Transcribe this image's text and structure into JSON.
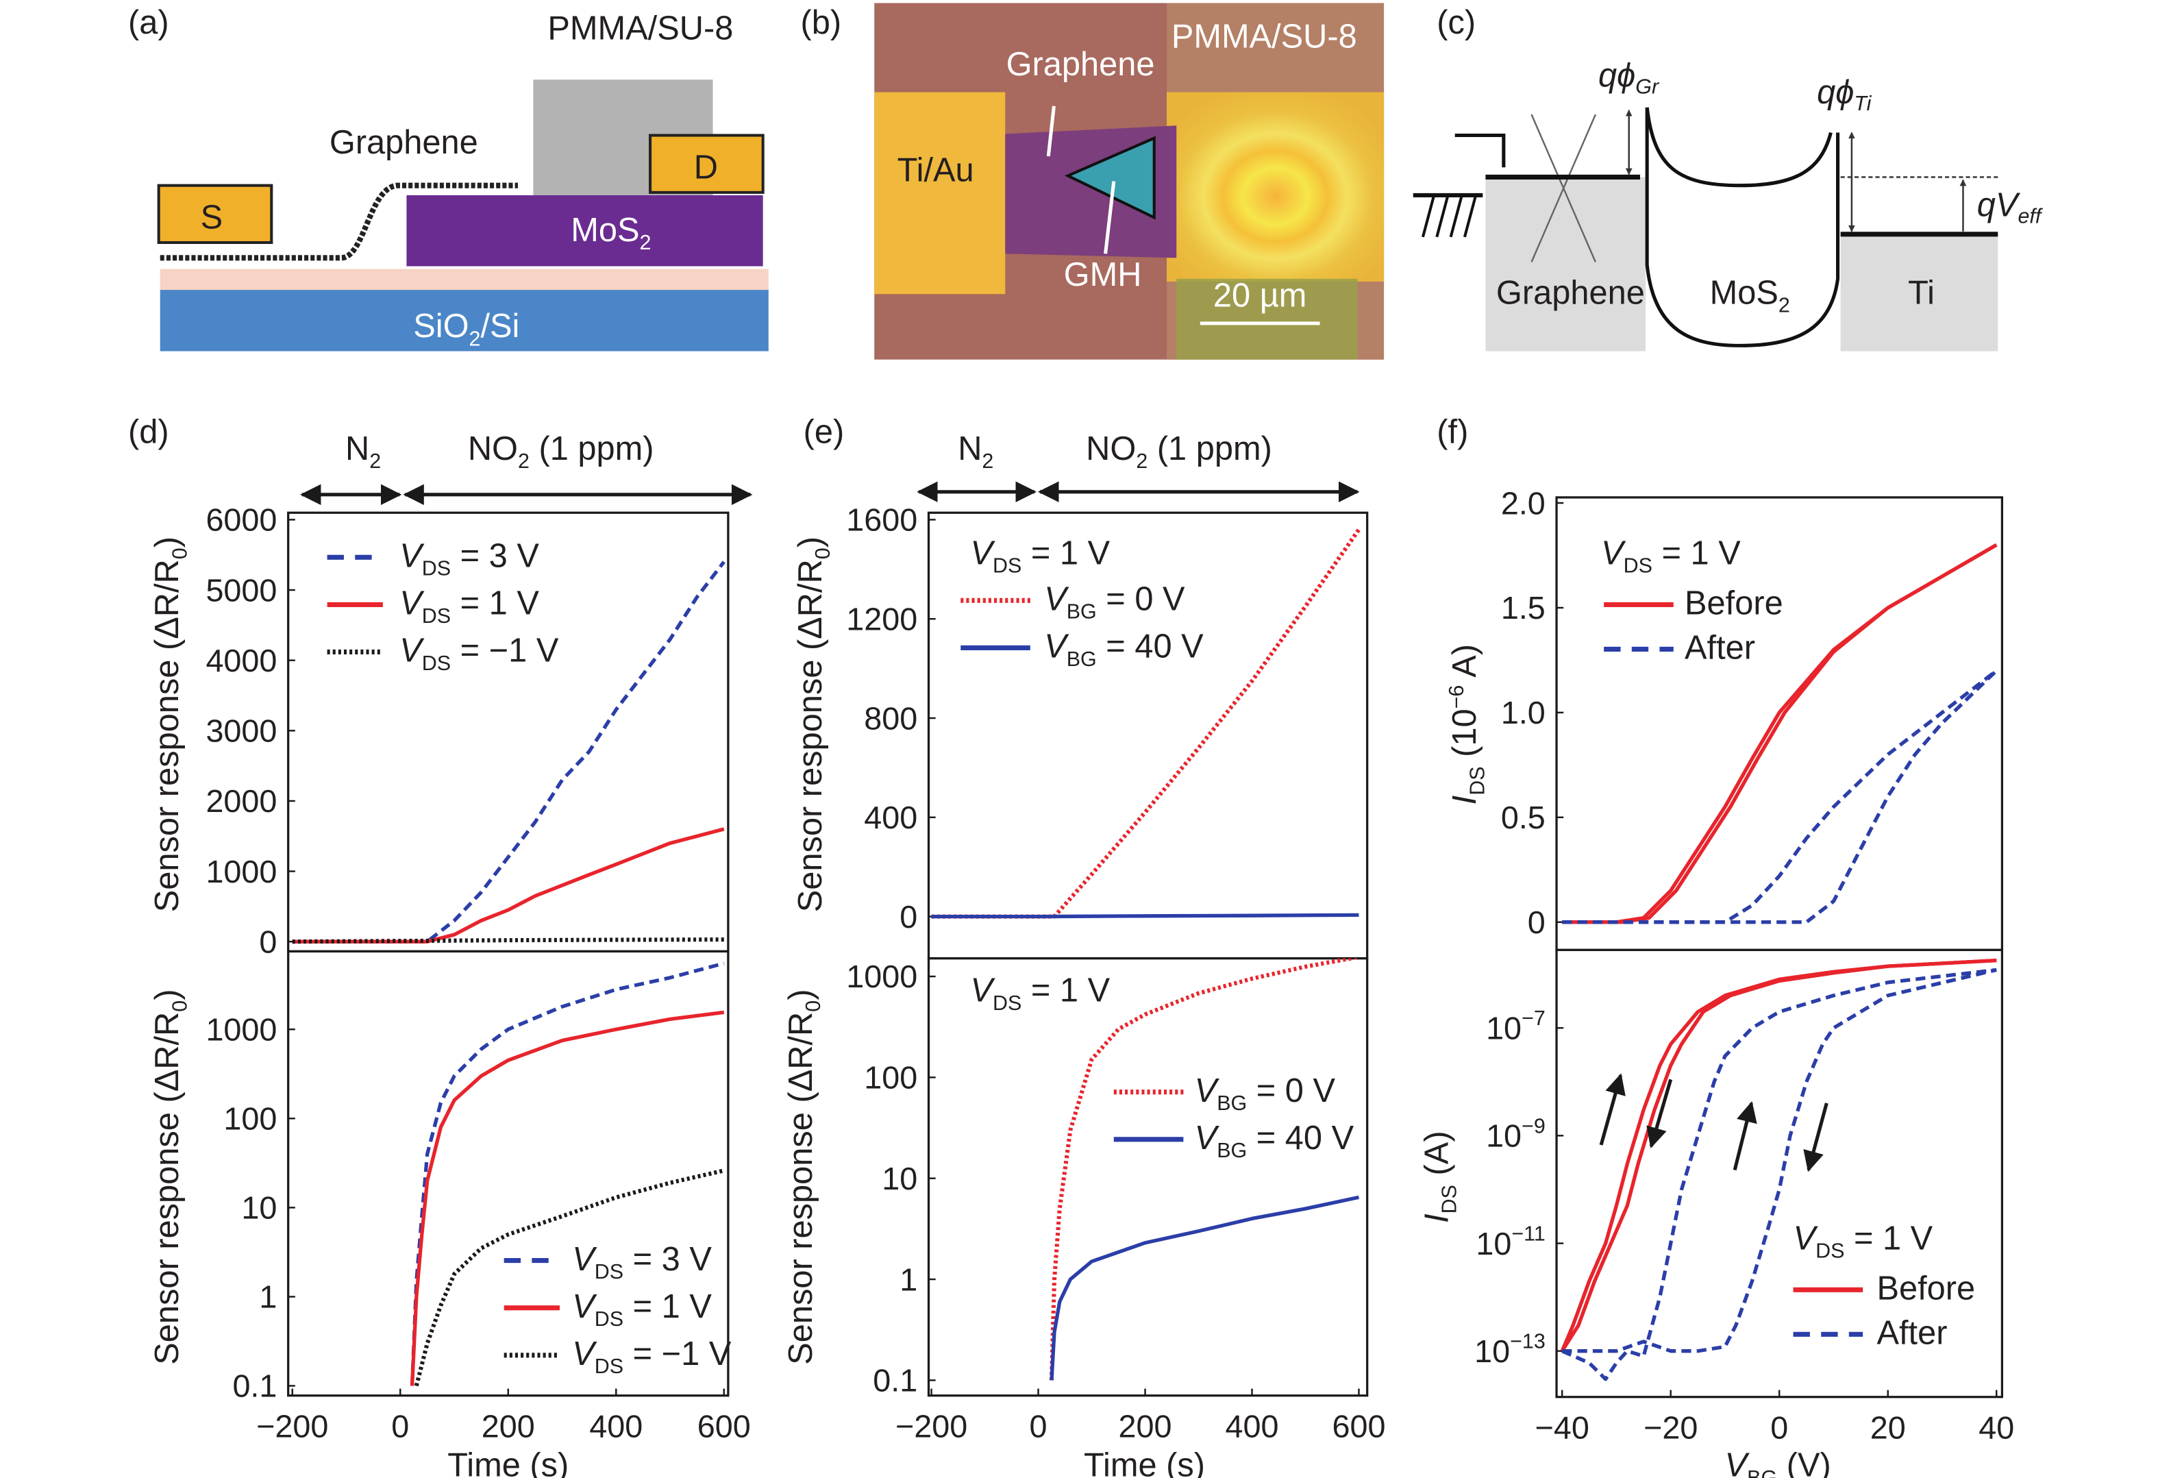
{
  "colors": {
    "red": "#e8242c",
    "blue": "#2b3ea8",
    "black": "#1a1a1a",
    "mos2": "#6a2c91",
    "contact": "#f0b02a",
    "substrate": "#4a86c8",
    "pmma": "#b3b3b3"
  },
  "panel_a": {
    "label": "(a)",
    "pmma": "PMMA/SU-8",
    "graphene": "Graphene",
    "source": "S",
    "drain": "D",
    "mos2": {
      "text": "MoS",
      "sub": "2"
    },
    "substrate": {
      "text": "SiO",
      "sub": "2",
      "rest": "/Si"
    }
  },
  "panel_b": {
    "label": "(b)",
    "pmma": "PMMA/SU-8",
    "graphene": "Graphene",
    "tiau": "Ti/Au",
    "gmh": "GMH",
    "scale": "20 µm"
  },
  "panel_c": {
    "label": "(c)",
    "phi_gr": {
      "q": "qϕ",
      "sub": "Gr"
    },
    "phi_ti": {
      "q": "qϕ",
      "sub": "Ti"
    },
    "veff": {
      "q": "qV",
      "sub": "eff"
    },
    "graphene": "Graphene",
    "mos2": {
      "text": "MoS",
      "sub": "2"
    },
    "ti": "Ti"
  },
  "panel_d": {
    "label": "(d)",
    "n2": {
      "text": "N",
      "sub": "2"
    },
    "no2": {
      "text": "NO",
      "sub": "2",
      "rest": " (1 ppm)"
    }
  },
  "panel_e": {
    "label": "(e)",
    "n2": {
      "text": "N",
      "sub": "2"
    },
    "no2": {
      "text": "NO",
      "sub": "2",
      "rest": " (1 ppm)"
    }
  },
  "panel_f": {
    "label": "(f)"
  },
  "chart_data": [
    {
      "panel": "d-top",
      "type": "line",
      "yscale": "linear",
      "xlim": [
        -200,
        600
      ],
      "ylim": [
        0,
        6000
      ],
      "ylabel": {
        "text": "Sensor response (ΔR/R",
        "sub": "0",
        "rest": ")"
      },
      "y_ticks": [
        {
          "v": 0,
          "t": "0"
        },
        {
          "v": 1000,
          "t": "1000"
        },
        {
          "v": 2000,
          "t": "2000"
        },
        {
          "v": 3000,
          "t": "3000"
        },
        {
          "v": 4000,
          "t": "4000"
        },
        {
          "v": 5000,
          "t": "5000"
        },
        {
          "v": 6000,
          "t": "6000"
        }
      ],
      "legend_position": "top-left",
      "series": [
        {
          "label": {
            "sym": "V",
            "sub": "DS",
            "rest": " = 3 V"
          },
          "color": "#2b3ea8",
          "style": "dashed",
          "x": [
            -200,
            0,
            50,
            100,
            150,
            200,
            250,
            300,
            350,
            400,
            450,
            500,
            550,
            600
          ],
          "y": [
            0,
            0,
            0,
            300,
            700,
            1200,
            1700,
            2300,
            2700,
            3300,
            3800,
            4300,
            4900,
            5400
          ]
        },
        {
          "label": {
            "sym": "V",
            "sub": "DS",
            "rest": " = 1 V"
          },
          "color": "#e8242c",
          "style": "solid",
          "x": [
            -200,
            0,
            50,
            100,
            150,
            200,
            250,
            300,
            350,
            400,
            450,
            500,
            550,
            600
          ],
          "y": [
            0,
            0,
            0,
            100,
            300,
            450,
            650,
            800,
            950,
            1100,
            1250,
            1400,
            1500,
            1600
          ]
        },
        {
          "label": {
            "sym": "V",
            "sub": "DS",
            "rest": " = −1 V"
          },
          "color": "#1a1a1a",
          "style": "dotted",
          "x": [
            -200,
            0,
            200,
            400,
            600
          ],
          "y": [
            0,
            10,
            20,
            25,
            30
          ]
        }
      ]
    },
    {
      "panel": "d-bottom",
      "type": "line",
      "yscale": "log",
      "xlim": [
        -200,
        600
      ],
      "ylim": [
        0.1,
        7500
      ],
      "xlabel": "Time (s)",
      "ylabel": {
        "text": "Sensor response (ΔR/R",
        "sub": "0",
        "rest": ")"
      },
      "x_ticks": [
        {
          "v": -200,
          "t": "−200"
        },
        {
          "v": 0,
          "t": "0"
        },
        {
          "v": 200,
          "t": "200"
        },
        {
          "v": 400,
          "t": "400"
        },
        {
          "v": 600,
          "t": "600"
        }
      ],
      "y_ticks": [
        {
          "v": 0.1,
          "t": "0.1"
        },
        {
          "v": 1,
          "t": "1"
        },
        {
          "v": 10,
          "t": "10"
        },
        {
          "v": 100,
          "t": "100"
        },
        {
          "v": 1000,
          "t": "1000"
        }
      ],
      "legend_position": "bottom-right",
      "series": [
        {
          "label": {
            "sym": "V",
            "sub": "DS",
            "rest": " = 3 V"
          },
          "color": "#2b3ea8",
          "style": "dashed",
          "x": [
            22,
            30,
            40,
            50,
            75,
            100,
            150,
            200,
            300,
            400,
            500,
            600
          ],
          "y": [
            0.1,
            1.5,
            8,
            40,
            150,
            300,
            600,
            1000,
            1800,
            2800,
            3800,
            5500
          ]
        },
        {
          "label": {
            "sym": "V",
            "sub": "DS",
            "rest": " = 1 V"
          },
          "color": "#e8242c",
          "style": "solid",
          "x": [
            22,
            30,
            40,
            50,
            75,
            100,
            150,
            200,
            300,
            400,
            500,
            600
          ],
          "y": [
            0.1,
            1,
            5,
            20,
            80,
            160,
            300,
            450,
            750,
            1000,
            1300,
            1550
          ]
        },
        {
          "label": {
            "sym": "V",
            "sub": "DS",
            "rest": " = −1 V"
          },
          "color": "#1a1a1a",
          "style": "dotted",
          "x": [
            30,
            50,
            75,
            100,
            150,
            200,
            300,
            400,
            500,
            600
          ],
          "y": [
            0.1,
            0.3,
            0.8,
            1.8,
            3.5,
            5,
            8,
            13,
            19,
            26
          ]
        }
      ]
    },
    {
      "panel": "e-top",
      "type": "line",
      "yscale": "linear",
      "xlim": [
        -200,
        600
      ],
      "ylim": [
        0,
        1600
      ],
      "ylabel": {
        "text": "Sensor response (ΔR/R",
        "sub": "0",
        "rest": ")"
      },
      "annotation": {
        "sym": "V",
        "sub": "DS",
        "rest": " = 1 V"
      },
      "y_ticks": [
        {
          "v": 0,
          "t": "0"
        },
        {
          "v": 400,
          "t": "400"
        },
        {
          "v": 800,
          "t": "800"
        },
        {
          "v": 1200,
          "t": "1200"
        },
        {
          "v": 1600,
          "t": "1600"
        }
      ],
      "legend_position": "top-left",
      "series": [
        {
          "label": {
            "sym": "V",
            "sub": "BG",
            "rest": " = 0 V"
          },
          "color": "#e8242c",
          "style": "dotted",
          "x": [
            -200,
            0,
            30,
            100,
            200,
            300,
            400,
            500,
            600
          ],
          "y": [
            0,
            0,
            0,
            170,
            420,
            680,
            950,
            1250,
            1560
          ]
        },
        {
          "label": {
            "sym": "V",
            "sub": "BG",
            "rest": " = 40 V"
          },
          "color": "#2b3ea8",
          "style": "solid",
          "x": [
            -200,
            0,
            200,
            400,
            600
          ],
          "y": [
            0,
            0,
            2,
            4,
            6
          ]
        }
      ]
    },
    {
      "panel": "e-bottom",
      "type": "line",
      "yscale": "log",
      "xlim": [
        -200,
        600
      ],
      "ylim": [
        0.1,
        1500
      ],
      "xlabel": "Time (s)",
      "ylabel": {
        "text": "Sensor response (ΔR/R",
        "sub": "0",
        "rest": ")"
      },
      "annotation": {
        "sym": "V",
        "sub": "DS",
        "rest": " = 1 V"
      },
      "x_ticks": [
        {
          "v": -200,
          "t": "−200"
        },
        {
          "v": 0,
          "t": "0"
        },
        {
          "v": 200,
          "t": "200"
        },
        {
          "v": 400,
          "t": "400"
        },
        {
          "v": 600,
          "t": "600"
        }
      ],
      "y_ticks": [
        {
          "v": 0.1,
          "t": "0.1"
        },
        {
          "v": 1,
          "t": "1"
        },
        {
          "v": 10,
          "t": "10"
        },
        {
          "v": 100,
          "t": "100"
        },
        {
          "v": 1000,
          "t": "1000"
        }
      ],
      "legend_position": "center-right",
      "series": [
        {
          "label": {
            "sym": "V",
            "sub": "BG",
            "rest": " = 0 V"
          },
          "color": "#e8242c",
          "style": "dotted",
          "x": [
            25,
            30,
            40,
            60,
            100,
            150,
            200,
            300,
            400,
            500,
            600
          ],
          "y": [
            0.1,
            1,
            5,
            30,
            150,
            300,
            420,
            680,
            950,
            1250,
            1560
          ]
        },
        {
          "label": {
            "sym": "V",
            "sub": "BG",
            "rest": " = 40 V"
          },
          "color": "#2b3ea8",
          "style": "solid",
          "x": [
            25,
            30,
            40,
            60,
            100,
            200,
            300,
            400,
            500,
            600
          ],
          "y": [
            0.1,
            0.3,
            0.6,
            1,
            1.5,
            2.3,
            3,
            4,
            5,
            6.5
          ]
        }
      ]
    },
    {
      "panel": "f-top",
      "type": "line",
      "yscale": "linear",
      "xlim": [
        -40,
        40
      ],
      "ylim": [
        0,
        2.0
      ],
      "ylabel": {
        "sym": "I",
        "sub": "DS",
        "rest": " (10",
        "sup": "−6",
        "rest2": " A)"
      },
      "annotation": {
        "sym": "V",
        "sub": "DS",
        "rest": " = 1 V"
      },
      "y_ticks": [
        {
          "v": 0,
          "t": "0"
        },
        {
          "v": 0.5,
          "t": "0.5"
        },
        {
          "v": 1.0,
          "t": "1.0"
        },
        {
          "v": 1.5,
          "t": "1.5"
        },
        {
          "v": 2.0,
          "t": "2.0"
        }
      ],
      "legend_position": "top-left",
      "series": [
        {
          "label": {
            "text": "Before"
          },
          "color": "#e8242c",
          "style": "solid",
          "x": [
            -40,
            -30,
            -25,
            -20,
            -15,
            -10,
            -5,
            0,
            10,
            20,
            30,
            40
          ],
          "y": [
            0,
            0,
            0.02,
            0.15,
            0.35,
            0.55,
            0.78,
            1.0,
            1.3,
            1.5,
            1.65,
            1.8
          ]
        },
        {
          "color": "#e8242c",
          "style": "solid",
          "x": [
            -40,
            -29,
            -24,
            -19,
            -14,
            -9,
            -4,
            1,
            10,
            20,
            30,
            40
          ],
          "y": [
            0,
            0,
            0.02,
            0.15,
            0.35,
            0.55,
            0.78,
            1.0,
            1.29,
            1.5,
            1.65,
            1.8
          ]
        },
        {
          "label": {
            "text": "After"
          },
          "color": "#2b3ea8",
          "style": "dashed",
          "x": [
            -40,
            -10,
            -5,
            0,
            5,
            10,
            20,
            30,
            40
          ],
          "y": [
            0,
            0,
            0.08,
            0.22,
            0.4,
            0.55,
            0.8,
            1.0,
            1.2
          ]
        },
        {
          "color": "#2b3ea8",
          "style": "dashed",
          "x": [
            -40,
            5,
            10,
            15,
            20,
            25,
            30,
            40
          ],
          "y": [
            0,
            0,
            0.1,
            0.35,
            0.6,
            0.8,
            0.95,
            1.2
          ]
        }
      ]
    },
    {
      "panel": "f-bottom",
      "type": "line",
      "yscale": "log",
      "xlim": [
        -40,
        40
      ],
      "ylim": [
        1e-14,
        3.5e-06
      ],
      "xlabel": {
        "sym": "V",
        "sub": "BG",
        "rest": " (V)"
      },
      "ylabel": {
        "sym": "I",
        "sub": "DS",
        "rest": " (A)"
      },
      "annotation": {
        "sym": "V",
        "sub": "DS",
        "rest": " = 1 V"
      },
      "x_ticks": [
        {
          "v": -40,
          "t": "−40"
        },
        {
          "v": -20,
          "t": "−20"
        },
        {
          "v": 0,
          "t": "0"
        },
        {
          "v": 20,
          "t": "20"
        },
        {
          "v": 40,
          "t": "40"
        }
      ],
      "y_ticks": [
        {
          "v": 1e-13,
          "base": "10",
          "exp": "−13"
        },
        {
          "v": 1e-11,
          "base": "10",
          "exp": "−11"
        },
        {
          "v": 1e-09,
          "base": "10",
          "exp": "−9"
        },
        {
          "v": 1e-07,
          "base": "10",
          "exp": "−7"
        }
      ],
      "legend_position": "bottom-right",
      "sweep_arrows": [
        "up",
        "down",
        "up",
        "down"
      ],
      "series": [
        {
          "label": {
            "text": "Before"
          },
          "color": "#e8242c",
          "style": "solid",
          "x": [
            -40,
            -38,
            -35,
            -32,
            -30,
            -28,
            -25,
            -22,
            -20,
            -15,
            -10,
            0,
            10,
            20,
            40
          ],
          "y": [
            1e-13,
            3e-13,
            2e-12,
            1e-11,
            5e-11,
            3e-10,
            3e-09,
            2e-08,
            5e-08,
            2e-07,
            4e-07,
            8e-07,
            1.1e-06,
            1.4e-06,
            1.8e-06
          ]
        },
        {
          "color": "#e8242c",
          "style": "solid",
          "x": [
            -40,
            -37,
            -34,
            -31,
            -28,
            -26,
            -23,
            -20,
            -18,
            -14,
            -9,
            0,
            10,
            20,
            40
          ],
          "y": [
            1e-13,
            3e-13,
            2e-12,
            1e-11,
            5e-11,
            3e-10,
            3e-09,
            2e-08,
            5e-08,
            2e-07,
            4e-07,
            7.5e-07,
            1.05e-06,
            1.4e-06,
            1.8e-06
          ]
        },
        {
          "label": {
            "text": "After"
          },
          "color": "#2b3ea8",
          "style": "dashed",
          "x": [
            -40,
            -35,
            -32,
            -30,
            -28,
            -25,
            -22,
            -20,
            -18,
            -15,
            -12,
            -10,
            -5,
            0,
            10,
            20,
            40
          ],
          "y": [
            1e-13,
            6e-14,
            3e-14,
            6e-14,
            1e-13,
            8e-14,
            1e-12,
            1e-11,
            1e-10,
            1e-09,
            1e-08,
            3e-08,
            1e-07,
            2e-07,
            4e-07,
            7e-07,
            1.2e-06
          ]
        },
        {
          "color": "#2b3ea8",
          "style": "dashed",
          "x": [
            -40,
            -30,
            -25,
            -20,
            -15,
            -10,
            -8,
            -5,
            -2,
            0,
            2,
            5,
            8,
            10,
            20,
            40
          ],
          "y": [
            1e-13,
            1e-13,
            1.5e-13,
            1e-13,
            1e-13,
            1.2e-13,
            3e-13,
            2e-12,
            2e-11,
            1e-10,
            1e-09,
            1e-08,
            5e-08,
            1e-07,
            4e-07,
            1.2e-06
          ]
        }
      ]
    }
  ]
}
